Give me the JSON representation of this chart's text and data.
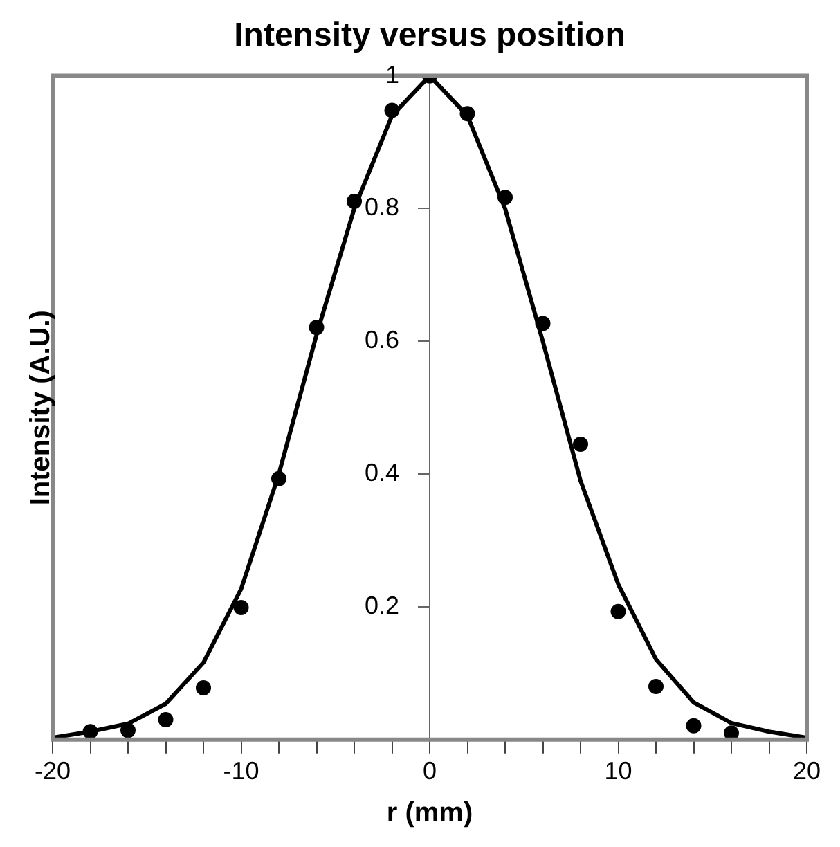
{
  "chart_data": {
    "type": "scatter",
    "title": "Intensity versus position",
    "xlabel": "r (mm)",
    "ylabel": "Intensity (A.U.)",
    "xlim": [
      -20,
      20
    ],
    "xticks": [
      -20,
      {
        "value": -18,
        "label": null
      },
      {
        "value": -16,
        "label": null
      },
      {
        "value": -14,
        "label": null
      },
      {
        "value": -12,
        "label": null
      },
      -10,
      {
        "value": -8,
        "label": null
      },
      {
        "value": -6,
        "label": null
      },
      {
        "value": -4,
        "label": null
      },
      {
        "value": -2,
        "label": null
      },
      0,
      {
        "value": 2,
        "label": null
      },
      {
        "value": 4,
        "label": null
      },
      {
        "value": 6,
        "label": null
      },
      {
        "value": 8,
        "label": null
      },
      10,
      {
        "value": 12,
        "label": null
      },
      {
        "value": 14,
        "label": null
      },
      {
        "value": 16,
        "label": null
      },
      {
        "value": 18,
        "label": null
      },
      20
    ],
    "ylim": [
      0,
      1
    ],
    "yticks": [
      0.2,
      0.4,
      0.6,
      0.8,
      1
    ],
    "grid": false,
    "legend": false,
    "series": [
      {
        "type": "line",
        "color": "#000000",
        "marker": "none",
        "line_style": "solid",
        "x": [
          -20,
          -18,
          -16,
          -14,
          -12,
          -10,
          -8,
          -6,
          -4,
          -2,
          0,
          2,
          4,
          6,
          8,
          10,
          12,
          14,
          16,
          18,
          20
        ],
        "values": [
          0.003,
          0.012,
          0.024,
          0.054,
          0.116,
          0.227,
          0.4,
          0.61,
          0.8,
          0.94,
          1,
          0.94,
          0.8,
          0.6,
          0.39,
          0.234,
          0.121,
          0.056,
          0.025,
          0.012,
          0.003
        ]
      },
      {
        "type": "scatter",
        "color": "#000000",
        "marker": "circle",
        "x": [
          -18,
          -16,
          -14,
          -12,
          -10,
          -8,
          -6,
          -4,
          -2,
          0,
          2,
          4,
          6,
          8,
          10,
          12,
          14,
          16
        ],
        "values": [
          0.012,
          0.014,
          0.03,
          0.078,
          0.199,
          0.393,
          0.621,
          0.811,
          0.948,
          1,
          0.943,
          0.817,
          0.627,
          0.445,
          0.193,
          0.08,
          0.021,
          0.01
        ]
      }
    ]
  }
}
